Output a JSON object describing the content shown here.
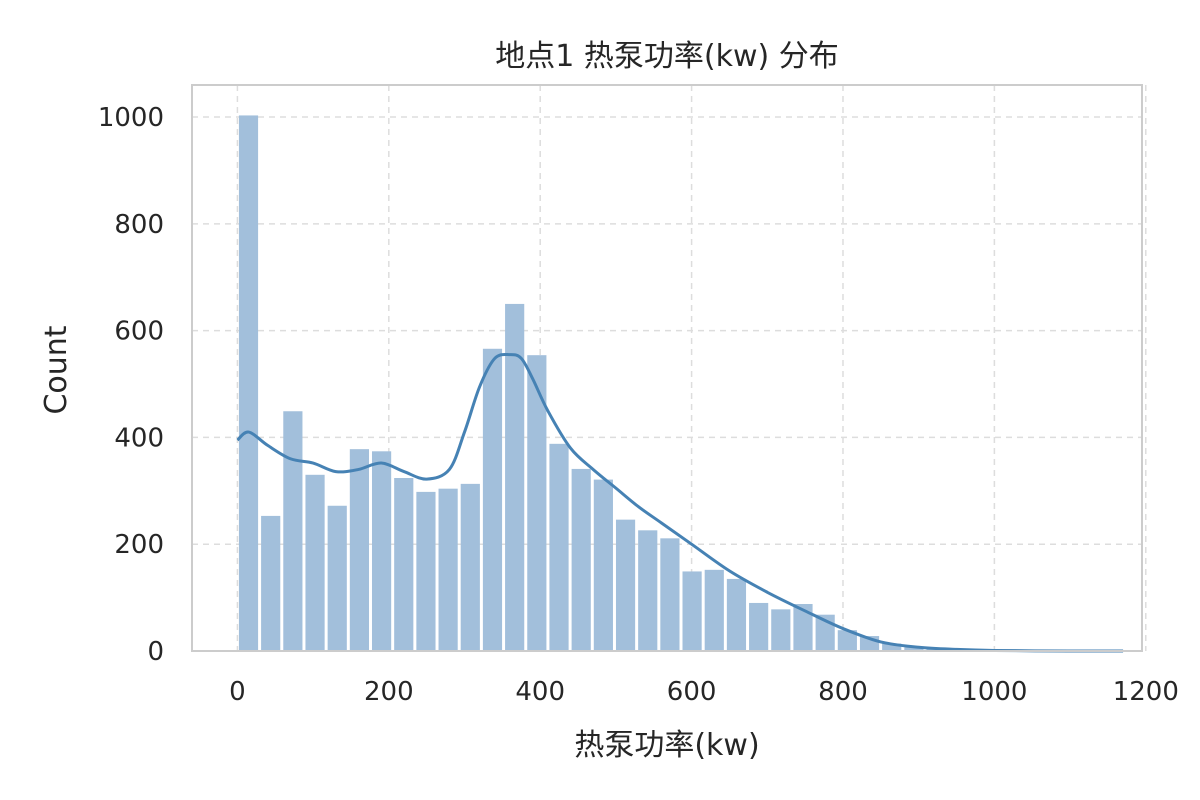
{
  "chart_data": {
    "type": "bar",
    "title": "地点1 热泵功率(kw) 分布",
    "xlabel": "热泵功率(kw)",
    "ylabel": "Count",
    "xlim": [
      -60,
      1195
    ],
    "ylim": [
      0,
      1060
    ],
    "x_ticks": [
      0,
      200,
      400,
      600,
      800,
      1000,
      1200
    ],
    "y_ticks": [
      0,
      200,
      400,
      600,
      800,
      1000
    ],
    "grid": true,
    "bin_width": 29.3,
    "bins": [
      {
        "x0": 0,
        "x1": 29.3,
        "count": 1003
      },
      {
        "x0": 29.3,
        "x1": 58.6,
        "count": 253
      },
      {
        "x0": 58.6,
        "x1": 87.9,
        "count": 449
      },
      {
        "x0": 87.9,
        "x1": 117.2,
        "count": 330
      },
      {
        "x0": 117.2,
        "x1": 146.5,
        "count": 272
      },
      {
        "x0": 146.5,
        "x1": 175.8,
        "count": 378
      },
      {
        "x0": 175.8,
        "x1": 205.1,
        "count": 374
      },
      {
        "x0": 205.1,
        "x1": 234.4,
        "count": 324
      },
      {
        "x0": 234.4,
        "x1": 263.7,
        "count": 298
      },
      {
        "x0": 263.7,
        "x1": 293.0,
        "count": 304
      },
      {
        "x0": 293.0,
        "x1": 322.3,
        "count": 313
      },
      {
        "x0": 322.3,
        "x1": 351.6,
        "count": 566
      },
      {
        "x0": 351.6,
        "x1": 380.9,
        "count": 650
      },
      {
        "x0": 380.9,
        "x1": 410.2,
        "count": 554
      },
      {
        "x0": 410.2,
        "x1": 439.5,
        "count": 388
      },
      {
        "x0": 439.5,
        "x1": 468.8,
        "count": 341
      },
      {
        "x0": 468.8,
        "x1": 498.1,
        "count": 321
      },
      {
        "x0": 498.1,
        "x1": 527.4,
        "count": 246
      },
      {
        "x0": 527.4,
        "x1": 556.7,
        "count": 226
      },
      {
        "x0": 556.7,
        "x1": 586.0,
        "count": 211
      },
      {
        "x0": 586.0,
        "x1": 615.3,
        "count": 149
      },
      {
        "x0": 615.3,
        "x1": 644.6,
        "count": 152
      },
      {
        "x0": 644.6,
        "x1": 673.9,
        "count": 135
      },
      {
        "x0": 673.9,
        "x1": 703.2,
        "count": 90
      },
      {
        "x0": 703.2,
        "x1": 732.5,
        "count": 78
      },
      {
        "x0": 732.5,
        "x1": 761.8,
        "count": 88
      },
      {
        "x0": 761.8,
        "x1": 791.1,
        "count": 68
      },
      {
        "x0": 791.1,
        "x1": 820.4,
        "count": 39
      },
      {
        "x0": 820.4,
        "x1": 849.7,
        "count": 28
      },
      {
        "x0": 849.7,
        "x1": 879.0,
        "count": 14
      },
      {
        "x0": 879.0,
        "x1": 908.3,
        "count": 7
      },
      {
        "x0": 908.3,
        "x1": 937.6,
        "count": 4
      },
      {
        "x0": 937.6,
        "x1": 966.9,
        "count": 2
      },
      {
        "x0": 966.9,
        "x1": 996.2,
        "count": 2
      },
      {
        "x0": 996.2,
        "x1": 1025.5,
        "count": 1
      },
      {
        "x0": 1025.5,
        "x1": 1054.8,
        "count": 1
      },
      {
        "x0": 1054.8,
        "x1": 1084.1,
        "count": 1
      },
      {
        "x0": 1084.1,
        "x1": 1113.4,
        "count": 1
      },
      {
        "x0": 1113.4,
        "x1": 1142.7,
        "count": 1
      },
      {
        "x0": 1142.7,
        "x1": 1172.0,
        "count": 1
      }
    ],
    "kde": {
      "x": [
        0,
        15,
        40,
        70,
        100,
        130,
        160,
        190,
        220,
        250,
        280,
        300,
        320,
        340,
        360,
        375,
        390,
        410,
        440,
        470,
        500,
        530,
        560,
        600,
        650,
        700,
        750,
        800,
        850,
        900,
        950,
        1000,
        1100,
        1170
      ],
      "y": [
        395,
        410,
        385,
        360,
        352,
        336,
        340,
        352,
        336,
        322,
        340,
        410,
        495,
        548,
        555,
        548,
        510,
        450,
        380,
        340,
        305,
        270,
        240,
        200,
        150,
        110,
        75,
        42,
        17,
        7,
        3,
        1,
        0,
        0
      ]
    },
    "colors": {
      "bar": "#a2bfdb",
      "kde": "#4682b4",
      "grid": "#dddddd",
      "spine": "#cccccc"
    }
  }
}
